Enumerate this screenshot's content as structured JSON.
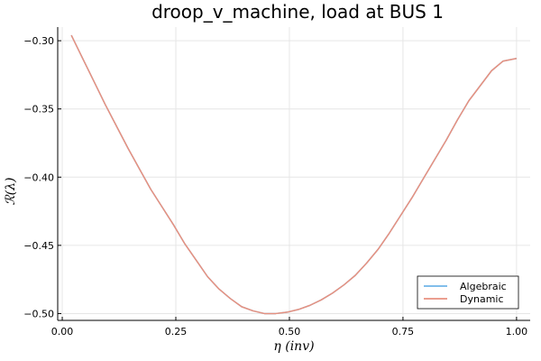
{
  "chart_data": {
    "type": "line",
    "title": "droop_v_machine, load at BUS 1",
    "xlabel": "η (inv)",
    "ylabel": "ℛ(λ)",
    "xlim": [
      -0.01,
      1.03
    ],
    "ylim": [
      -0.505,
      -0.29
    ],
    "xticks": [
      0.0,
      0.25,
      0.5,
      0.75,
      1.0
    ],
    "xtick_labels": [
      "0.00",
      "0.25",
      "0.50",
      "0.75",
      "1.00"
    ],
    "yticks": [
      -0.5,
      -0.45,
      -0.4,
      -0.35,
      -0.3
    ],
    "ytick_labels": [
      "−0.50",
      "−0.45",
      "−0.40",
      "−0.35",
      "−0.30"
    ],
    "grid": true,
    "legend_position": "bottom-right",
    "x": [
      0.02,
      0.045,
      0.07,
      0.095,
      0.12,
      0.145,
      0.17,
      0.195,
      0.22,
      0.245,
      0.27,
      0.295,
      0.32,
      0.345,
      0.37,
      0.395,
      0.42,
      0.445,
      0.47,
      0.495,
      0.52,
      0.545,
      0.57,
      0.595,
      0.62,
      0.645,
      0.67,
      0.695,
      0.72,
      0.745,
      0.77,
      0.795,
      0.82,
      0.845,
      0.87,
      0.895,
      0.92,
      0.945,
      0.97,
      1.0
    ],
    "series": [
      {
        "name": "Algebraic",
        "color": "#6fb5e8",
        "values": [
          -0.296,
          -0.313,
          -0.33,
          -0.347,
          -0.363,
          -0.379,
          -0.394,
          -0.409,
          -0.422,
          -0.435,
          -0.449,
          -0.461,
          -0.473,
          -0.482,
          -0.489,
          -0.495,
          -0.498,
          -0.5,
          -0.5,
          -0.499,
          -0.497,
          -0.494,
          -0.49,
          -0.485,
          -0.479,
          -0.472,
          -0.463,
          -0.453,
          -0.441,
          -0.428,
          -0.415,
          -0.401,
          -0.387,
          -0.373,
          -0.358,
          -0.344,
          -0.333,
          -0.322,
          -0.315,
          -0.313
        ]
      },
      {
        "name": "Dynamic",
        "color": "#e8917f",
        "values": [
          -0.296,
          -0.313,
          -0.33,
          -0.347,
          -0.363,
          -0.379,
          -0.394,
          -0.409,
          -0.422,
          -0.435,
          -0.449,
          -0.461,
          -0.473,
          -0.482,
          -0.489,
          -0.495,
          -0.498,
          -0.5,
          -0.5,
          -0.499,
          -0.497,
          -0.494,
          -0.49,
          -0.485,
          -0.479,
          -0.472,
          -0.463,
          -0.453,
          -0.441,
          -0.428,
          -0.415,
          -0.401,
          -0.387,
          -0.373,
          -0.358,
          -0.344,
          -0.333,
          -0.322,
          -0.315,
          -0.313
        ]
      }
    ]
  }
}
